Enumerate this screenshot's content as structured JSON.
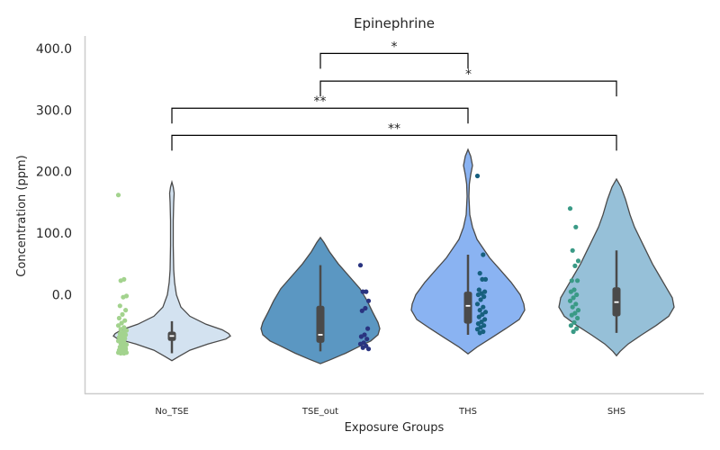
{
  "chart_data": {
    "type": "violin",
    "title": "Epinephrine",
    "xlabel": "Exposure Groups",
    "ylabel": "Concentration (ppm)",
    "categories": [
      "No_TSE",
      "TSE_out",
      "THS",
      "SHS"
    ],
    "y_ticks": [
      "0.0",
      "100.0",
      "200.0",
      "300.0",
      "400.0"
    ],
    "y_tick_values": [
      0,
      100,
      200,
      300,
      400
    ],
    "ylim": [
      -160,
      420
    ],
    "grid": false,
    "colors": {
      "violin": [
        "#d3e2f0",
        "#5b97c2",
        "#8ab3f2",
        "#96c0d8"
      ],
      "points": [
        "#a3d38e",
        "#2a3480",
        "#17607f",
        "#3a9a86"
      ],
      "box": "#4a4a4a",
      "median": "#ffffff",
      "outline": "#4a4a4a"
    },
    "groups": [
      {
        "name": "No_TSE",
        "box": {
          "q1": -75,
          "median": -67,
          "q3": -60,
          "whisker_low": -95,
          "whisker_high": -43
        },
        "points": [
          162,
          25,
          23,
          -2,
          -4,
          -18,
          -25,
          -32,
          -38,
          -42,
          -46,
          -50,
          -53,
          -56,
          -58,
          -61,
          -63,
          -65,
          -67,
          -69,
          -71,
          -73,
          -75,
          -77,
          -79,
          -81,
          -83,
          -85,
          -87,
          -88,
          -90,
          -92,
          -93,
          -94,
          -95,
          -95,
          -94,
          -93,
          -91,
          -89
        ]
      },
      {
        "name": "TSE_out",
        "box": {
          "q1": -78,
          "median": -65,
          "q3": -18,
          "whisker_low": -92,
          "whisker_high": 48
        },
        "points": [
          48,
          5,
          5,
          -10,
          -22,
          -26,
          -55,
          -65,
          -68,
          -72,
          -78,
          -80,
          -83,
          -86,
          -88
        ]
      },
      {
        "name": "THS",
        "box": {
          "q1": -47,
          "median": -18,
          "q3": 5,
          "whisker_low": -65,
          "whisker_high": 65
        },
        "points": [
          193,
          65,
          35,
          25,
          25,
          8,
          5,
          2,
          0,
          -3,
          -8,
          -15,
          -20,
          -25,
          -28,
          -32,
          -36,
          -40,
          -44,
          -47,
          -50,
          -53,
          -56,
          -60,
          -62
        ]
      },
      {
        "name": "SHS",
        "box": {
          "q1": -35,
          "median": -12,
          "q3": 12,
          "whisker_low": -62,
          "whisker_high": 72
        },
        "points": [
          140,
          110,
          72,
          55,
          47,
          23,
          23,
          8,
          5,
          0,
          -5,
          -10,
          -15,
          -20,
          -25,
          -30,
          -33,
          -38,
          -45,
          -50,
          -55,
          -60
        ]
      }
    ],
    "significance": [
      {
        "from": "TSE_out",
        "to": "THS",
        "y": 392,
        "label": "*"
      },
      {
        "from": "TSE_out",
        "to": "SHS",
        "y": 347,
        "label": "*"
      },
      {
        "from": "No_TSE",
        "to": "THS",
        "y": 303,
        "label": "**"
      },
      {
        "from": "No_TSE",
        "to": "SHS",
        "y": 259,
        "label": "**"
      }
    ]
  }
}
